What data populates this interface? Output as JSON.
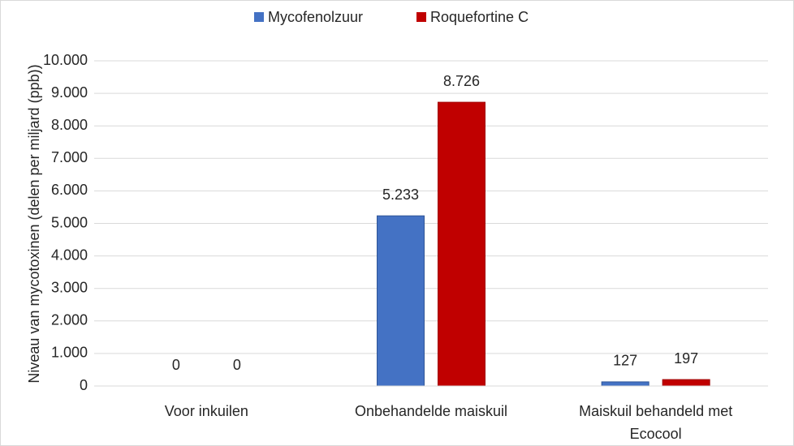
{
  "chart_data": {
    "type": "bar",
    "y_label": "Niveau van mycotoxinen (delen per miljard (ppb))",
    "categories": [
      "Voor inkuilen",
      "Onbehandelde maiskuil",
      "Maiskuil behandeld met Ecocool"
    ],
    "series": [
      {
        "name": "Mycofenolzuur",
        "color": "#4472c4",
        "values": [
          0,
          5233,
          127
        ],
        "value_labels": [
          "0",
          "5.233",
          "127"
        ]
      },
      {
        "name": "Roquefortine C",
        "color": "#c00000",
        "values": [
          0,
          8726,
          197
        ],
        "value_labels": [
          "0",
          "8.726",
          "197"
        ]
      }
    ],
    "ylim": [
      0,
      10000
    ],
    "yticks": [
      0,
      {
        "value": 1000,
        "label": "1.000"
      },
      {
        "value": 2000,
        "label": "2.000"
      },
      {
        "value": 3000,
        "label": "3.000"
      },
      {
        "value": 4000,
        "label": "4.000"
      },
      {
        "value": 5000,
        "label": "5.000"
      },
      {
        "value": 6000,
        "label": "6.000"
      },
      {
        "value": 7000,
        "label": "7.000"
      },
      {
        "value": 8000,
        "label": "8.000"
      },
      {
        "value": 9000,
        "label": "9.000"
      },
      {
        "value": 10000,
        "label": "10.000"
      }
    ],
    "grid": true,
    "legend": "top"
  }
}
